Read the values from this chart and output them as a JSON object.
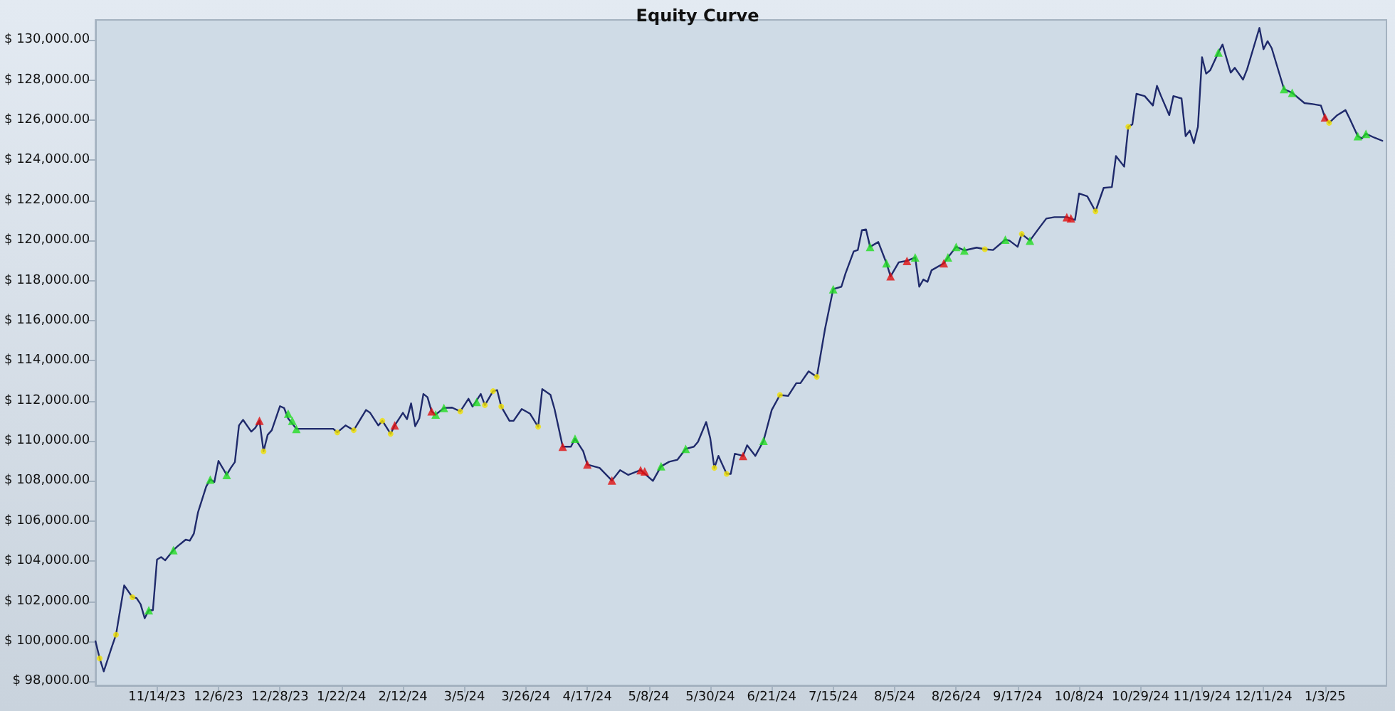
{
  "chart_data": {
    "type": "line",
    "title": "Equity Curve",
    "categories": [
      null,
      null,
      null,
      null,
      null,
      null,
      null,
      null,
      null,
      null,
      null,
      null,
      null,
      null,
      null,
      "11/14/23",
      null,
      null,
      null,
      null,
      null,
      null,
      null,
      null,
      null,
      null,
      null,
      null,
      null,
      null,
      "12/6/23",
      null,
      null,
      null,
      null,
      null,
      null,
      null,
      null,
      null,
      null,
      null,
      null,
      null,
      null,
      "12/28/23",
      null,
      null,
      null,
      null,
      null,
      null,
      null,
      null,
      null,
      null,
      null,
      null,
      null,
      null,
      "1/22/24",
      null,
      null,
      null,
      null,
      null,
      null,
      null,
      null,
      null,
      null,
      null,
      null,
      null,
      null,
      "2/12/24",
      null,
      null,
      null,
      null,
      null,
      null,
      null,
      null,
      null,
      null,
      null,
      null,
      null,
      null,
      "3/5/24",
      null,
      null,
      null,
      null,
      null,
      null,
      null,
      null,
      null,
      null,
      null,
      null,
      null,
      null,
      "3/26/24",
      null,
      null,
      null,
      null,
      null,
      null,
      null,
      null,
      null,
      null,
      null,
      null,
      null,
      null,
      "4/17/24",
      null,
      null,
      null,
      null,
      null,
      null,
      null,
      null,
      null,
      null,
      null,
      null,
      null,
      null,
      "5/8/24",
      null,
      null,
      null,
      null,
      null,
      null,
      null,
      null,
      null,
      null,
      null,
      null,
      null,
      null,
      "5/30/24",
      null,
      null,
      null,
      null,
      null,
      null,
      null,
      null,
      null,
      null,
      null,
      null,
      null,
      null,
      "6/21/24",
      null,
      null,
      null,
      null,
      null,
      null,
      null,
      null,
      null,
      null,
      null,
      null,
      null,
      null,
      "7/15/24",
      null,
      null,
      null,
      null,
      null,
      null,
      null,
      null,
      null,
      null,
      null,
      null,
      null,
      null,
      "8/5/24",
      null,
      null,
      null,
      null,
      null,
      null,
      null,
      null,
      null,
      null,
      null,
      null,
      null,
      null,
      "8/26/24",
      null,
      null,
      null,
      null,
      null,
      null,
      null,
      null,
      null,
      null,
      null,
      null,
      null,
      null,
      "9/17/24",
      null,
      null,
      null,
      null,
      null,
      null,
      null,
      null,
      null,
      null,
      null,
      null,
      null,
      null,
      "10/8/24",
      null,
      null,
      null,
      null,
      null,
      null,
      null,
      null,
      null,
      null,
      null,
      null,
      null,
      null,
      "10/29/24",
      null,
      null,
      null,
      null,
      null,
      null,
      null,
      null,
      null,
      null,
      null,
      null,
      null,
      null,
      "11/19/24",
      null,
      null,
      null,
      null,
      null,
      null,
      null,
      null,
      null,
      null,
      null,
      null,
      null,
      null,
      "12/11/24",
      null,
      null,
      null,
      null,
      null,
      null,
      null,
      null,
      null,
      null,
      null,
      null,
      null,
      null,
      "1/3/25",
      null,
      null,
      null,
      null,
      null,
      null,
      null,
      null,
      null,
      null,
      null,
      null,
      null,
      null,
      null
    ],
    "ylim": [
      97800,
      131000
    ],
    "yticks": [
      {
        "value": 98000,
        "label": "$ 98,000.00"
      },
      {
        "value": 100000,
        "label": "$ 100,000.00"
      },
      {
        "value": 102000,
        "label": "$ 102,000.00"
      },
      {
        "value": 104000,
        "label": "$ 104,000.00"
      },
      {
        "value": 106000,
        "label": "$ 106,000.00"
      },
      {
        "value": 108000,
        "label": "$ 108,000.00"
      },
      {
        "value": 110000,
        "label": "$ 110,000.00"
      },
      {
        "value": 112000,
        "label": "$ 112,000.00"
      },
      {
        "value": 114000,
        "label": "$ 114,000.00"
      },
      {
        "value": 116000,
        "label": "$ 116,000.00"
      },
      {
        "value": 118000,
        "label": "$ 118,000.00"
      },
      {
        "value": 120000,
        "label": "$ 120,000.00"
      },
      {
        "value": 122000,
        "label": "$ 122,000.00"
      },
      {
        "value": 124000,
        "label": "$ 124,000.00"
      },
      {
        "value": 126000,
        "label": "$ 126,000.00"
      },
      {
        "value": 128000,
        "label": "$ 128,000.00"
      },
      {
        "value": 130000,
        "label": "$ 130,000.00"
      }
    ],
    "grid": false,
    "line_style": "solid",
    "series": [
      {
        "color": "#1f2a6b",
        "marker": "none",
        "values": [
          100000,
          99150,
          98500,
          null,
          99740,
          100330,
          null,
          102790,
          null,
          102200,
          102160,
          101850,
          101150,
          101550,
          101550,
          104080,
          104200,
          104040,
          null,
          104550,
          104740,
          null,
          105070,
          105020,
          105380,
          106430,
          null,
          107720,
          108070,
          107950,
          109000,
          null,
          108300,
          108650,
          108940,
          110770,
          111050,
          null,
          110460,
          110650,
          111000,
          109480,
          110300,
          110530,
          null,
          111730,
          111640,
          111120,
          null,
          110600,
          null,
          null,
          null,
          null,
          null,
          null,
          null,
          null,
          110600,
          110420,
          null,
          110770,
          null,
          110530,
          null,
          null,
          111540,
          111400,
          null,
          110770,
          111000,
          null,
          110350,
          110770,
          null,
          111400,
          111080,
          111870,
          110730,
          111120,
          112340,
          112180,
          111470,
          111310,
          null,
          111640,
          null,
          111660,
          null,
          111470,
          null,
          112100,
          111710,
          null,
          112340,
          111780,
          null,
          112480,
          112530,
          111710,
          null,
          111000,
          111000,
          null,
          111590,
          null,
          111360,
          null,
          110700,
          112580,
          null,
          112300,
          111590,
          null,
          109710,
          null,
          109710,
          110110,
          null,
          109480,
          108820,
          null,
          null,
          108650,
          null,
          null,
          108020,
          null,
          108540,
          null,
          108300,
          null,
          null,
          108540,
          null,
          null,
          108000,
          null,
          108730,
          null,
          108960,
          null,
          109060,
          null,
          109600,
          null,
          109710,
          109950,
          null,
          110940,
          110130,
          108650,
          109250,
          null,
          108350,
          108350,
          109360,
          null,
          109250,
          109780,
          null,
          109250,
          null,
          110000,
          null,
          111540,
          null,
          112290,
          null,
          112240,
          null,
          112880,
          112880,
          null,
          113470,
          null,
          113190,
          null,
          115580,
          null,
          117570,
          null,
          117690,
          118350,
          null,
          119450,
          119520,
          120510,
          120550,
          119680,
          null,
          119920,
          null,
          118860,
          118210,
          null,
          118910,
          null,
          118980,
          null,
          119150,
          117690,
          118050,
          117930,
          118510,
          null,
          null,
          118860,
          119150,
          null,
          119680,
          null,
          119500,
          null,
          null,
          119640,
          null,
          119560,
          null,
          119520,
          null,
          null,
          120040,
          119990,
          null,
          119680,
          120320,
          null,
          119990,
          null,
          120550,
          null,
          121090,
          null,
          121160,
          null,
          null,
          121160,
          null,
          121020,
          122340,
          null,
          122200,
          null,
          121450,
          null,
          122620,
          null,
          122660,
          124210,
          null,
          123680,
          125670,
          125790,
          127310,
          null,
          127200,
          null,
          126730,
          127710,
          127200,
          null,
          126250,
          127200,
          null,
          127080,
          125200,
          125480,
          124850,
          125670,
          129140,
          128320,
          128490,
          null,
          129380,
          129770,
          null,
          128370,
          128610,
          null,
          128020,
          128540,
          null,
          null,
          130600,
          129540,
          129940,
          129590,
          null,
          null,
          127550,
          null,
          127360,
          null,
          null,
          126850,
          null,
          126800,
          null,
          126730,
          126140,
          125860,
          null,
          126250,
          null,
          126500,
          126090,
          null,
          125200,
          125090,
          125320,
          null,
          125130,
          null,
          124970,
          null
        ]
      },
      {
        "type": "scatter",
        "color": "#22dd22",
        "marker": "triangle",
        "values": [
          null,
          null,
          null,
          null,
          null,
          null,
          null,
          null,
          null,
          null,
          null,
          null,
          null,
          101550,
          null,
          null,
          null,
          null,
          null,
          104550,
          null,
          null,
          null,
          null,
          null,
          null,
          null,
          null,
          108070,
          null,
          null,
          null,
          108300,
          null,
          null,
          null,
          null,
          null,
          null,
          null,
          null,
          null,
          null,
          null,
          null,
          null,
          null,
          111360,
          111000,
          110600,
          null,
          null,
          null,
          null,
          null,
          null,
          null,
          null,
          null,
          null,
          null,
          null,
          null,
          null,
          null,
          null,
          null,
          null,
          null,
          null,
          null,
          null,
          null,
          null,
          null,
          null,
          null,
          null,
          null,
          null,
          null,
          null,
          null,
          111310,
          null,
          111640,
          null,
          null,
          null,
          null,
          null,
          null,
          null,
          111940,
          null,
          null,
          null,
          null,
          null,
          null,
          null,
          null,
          null,
          null,
          null,
          null,
          null,
          null,
          null,
          null,
          null,
          null,
          null,
          null,
          null,
          null,
          null,
          110110,
          null,
          null,
          null,
          null,
          null,
          null,
          null,
          null,
          null,
          null,
          null,
          null,
          null,
          null,
          null,
          null,
          null,
          null,
          null,
          null,
          108730,
          null,
          null,
          null,
          null,
          null,
          109600,
          null,
          null,
          null,
          null,
          null,
          null,
          null,
          null,
          null,
          null,
          null,
          null,
          null,
          null,
          null,
          null,
          null,
          null,
          110000,
          null,
          null,
          null,
          null,
          null,
          null,
          null,
          null,
          null,
          null,
          null,
          null,
          null,
          null,
          null,
          null,
          117570,
          null,
          null,
          null,
          null,
          null,
          null,
          null,
          null,
          119680,
          null,
          null,
          null,
          118860,
          null,
          null,
          null,
          null,
          null,
          null,
          119150,
          null,
          null,
          null,
          null,
          null,
          null,
          null,
          119150,
          null,
          119680,
          null,
          119500,
          null,
          null,
          null,
          null,
          null,
          null,
          null,
          null,
          null,
          120040,
          null,
          null,
          null,
          null,
          null,
          119990,
          null,
          null,
          null,
          null,
          null,
          null,
          null,
          null,
          null,
          null,
          null,
          null,
          null,
          null,
          null,
          null,
          null,
          null,
          null,
          null,
          null,
          null,
          null,
          null,
          null,
          null,
          null,
          null,
          null,
          null,
          null,
          null,
          null,
          null,
          null,
          null,
          null,
          null,
          null,
          null,
          null,
          null,
          null,
          null,
          null,
          129380,
          null,
          null,
          null,
          null,
          null,
          null,
          null,
          null,
          null,
          null,
          null,
          null,
          null,
          null,
          null,
          127550,
          null,
          127360,
          null,
          null,
          null,
          null,
          null,
          null,
          null,
          null,
          null,
          null,
          null,
          null,
          null,
          null,
          null,
          125200,
          null,
          125320,
          null,
          null,
          null,
          null,
          null
        ]
      },
      {
        "type": "scatter",
        "color": "#e01010",
        "marker": "triangle",
        "values": [
          null,
          null,
          null,
          null,
          null,
          null,
          null,
          null,
          null,
          null,
          null,
          null,
          null,
          null,
          null,
          null,
          null,
          null,
          null,
          null,
          null,
          null,
          null,
          null,
          null,
          null,
          null,
          null,
          null,
          null,
          null,
          null,
          null,
          null,
          null,
          null,
          null,
          null,
          null,
          null,
          111000,
          null,
          null,
          null,
          null,
          null,
          null,
          null,
          null,
          null,
          null,
          null,
          null,
          null,
          null,
          null,
          null,
          null,
          null,
          null,
          null,
          null,
          null,
          null,
          null,
          null,
          null,
          null,
          null,
          null,
          null,
          null,
          null,
          110770,
          null,
          null,
          null,
          null,
          null,
          null,
          null,
          null,
          111470,
          null,
          null,
          null,
          null,
          null,
          null,
          null,
          null,
          null,
          null,
          null,
          null,
          null,
          null,
          null,
          null,
          null,
          null,
          null,
          null,
          null,
          null,
          null,
          null,
          null,
          null,
          null,
          null,
          null,
          null,
          null,
          109710,
          null,
          null,
          null,
          null,
          null,
          108820,
          null,
          null,
          null,
          null,
          null,
          108020,
          null,
          null,
          null,
          null,
          null,
          null,
          108540,
          108480,
          null,
          null,
          null,
          null,
          null,
          null,
          null,
          null,
          null,
          null,
          null,
          null,
          null,
          null,
          null,
          null,
          null,
          null,
          null,
          null,
          null,
          null,
          null,
          109250,
          null,
          null,
          null,
          null,
          null,
          null,
          null,
          null,
          null,
          null,
          null,
          null,
          null,
          null,
          null,
          null,
          null,
          null,
          null,
          null,
          null,
          null,
          null,
          null,
          null,
          null,
          null,
          null,
          null,
          null,
          null,
          null,
          null,
          null,
          null,
          118210,
          null,
          null,
          null,
          118980,
          null,
          null,
          null,
          null,
          null,
          null,
          null,
          null,
          118860,
          null,
          null,
          null,
          null,
          null,
          null,
          null,
          null,
          null,
          null,
          null,
          null,
          null,
          null,
          null,
          null,
          null,
          null,
          null,
          null,
          null,
          null,
          null,
          null,
          null,
          null,
          null,
          null,
          null,
          121160,
          121100,
          null,
          null,
          null,
          null,
          null,
          null,
          null,
          null,
          null,
          null,
          null,
          null,
          null,
          null,
          null,
          null,
          null,
          null,
          null,
          null,
          null,
          null,
          null,
          null,
          null,
          null,
          null,
          null,
          null,
          null,
          null,
          null,
          null,
          null,
          null,
          null,
          null,
          null,
          null,
          null,
          null,
          null,
          null,
          null,
          null,
          null,
          null,
          null,
          null,
          null,
          null,
          null,
          null,
          null,
          null,
          null,
          null,
          null,
          null,
          null,
          null,
          126140,
          null,
          null,
          null,
          null,
          null,
          null,
          null,
          null,
          null,
          null,
          null,
          null,
          null,
          null,
          null
        ]
      },
      {
        "type": "scatter",
        "color": "#f0e000",
        "marker": "circle",
        "values": [
          null,
          99150,
          null,
          null,
          null,
          100330,
          null,
          null,
          null,
          102200,
          null,
          null,
          null,
          null,
          null,
          null,
          null,
          null,
          null,
          null,
          null,
          null,
          null,
          null,
          null,
          null,
          null,
          null,
          null,
          null,
          null,
          null,
          null,
          null,
          null,
          null,
          null,
          null,
          null,
          null,
          null,
          109480,
          null,
          null,
          null,
          null,
          null,
          null,
          null,
          null,
          null,
          null,
          null,
          null,
          null,
          null,
          null,
          null,
          null,
          110420,
          null,
          null,
          null,
          110530,
          null,
          null,
          null,
          null,
          null,
          null,
          111000,
          null,
          110350,
          null,
          null,
          null,
          null,
          null,
          null,
          null,
          null,
          null,
          null,
          null,
          null,
          null,
          null,
          null,
          null,
          111470,
          null,
          null,
          null,
          null,
          null,
          111780,
          null,
          112480,
          null,
          111710,
          null,
          null,
          null,
          null,
          null,
          null,
          null,
          null,
          110700,
          null,
          null,
          null,
          null,
          null,
          null,
          null,
          null,
          null,
          null,
          null,
          null,
          null,
          null,
          null,
          null,
          null,
          null,
          null,
          null,
          null,
          null,
          null,
          null,
          null,
          null,
          null,
          null,
          null,
          null,
          null,
          null,
          null,
          null,
          null,
          null,
          null,
          null,
          null,
          null,
          null,
          null,
          108650,
          null,
          null,
          108350,
          null,
          null,
          null,
          null,
          null,
          null,
          null,
          null,
          null,
          null,
          null,
          null,
          112290,
          null,
          null,
          null,
          null,
          null,
          null,
          null,
          null,
          113190,
          null,
          null,
          null,
          null,
          null,
          null,
          null,
          null,
          null,
          null,
          null,
          null,
          null,
          null,
          null,
          null,
          null,
          null,
          null,
          null,
          null,
          null,
          null,
          null,
          null,
          null,
          null,
          null,
          null,
          null,
          null,
          null,
          null,
          null,
          null,
          null,
          null,
          null,
          null,
          null,
          119560,
          null,
          null,
          null,
          null,
          null,
          null,
          null,
          null,
          120320,
          null,
          null,
          null,
          null,
          null,
          null,
          null,
          null,
          null,
          null,
          null,
          null,
          null,
          null,
          null,
          null,
          null,
          121450,
          null,
          null,
          null,
          null,
          null,
          null,
          null,
          125670,
          null,
          null,
          null,
          null,
          null,
          null,
          null,
          null,
          null,
          null,
          null,
          null,
          null,
          null,
          null,
          null,
          null,
          null,
          null,
          null,
          null,
          null,
          null,
          null,
          null,
          null,
          null,
          null,
          null,
          null,
          null,
          null,
          null,
          null,
          null,
          null,
          null,
          null,
          null,
          null,
          null,
          null,
          null,
          null,
          null,
          null,
          null,
          null,
          125860,
          null,
          null,
          null,
          null,
          null,
          null,
          null,
          null,
          null,
          null,
          null,
          null,
          null,
          null
        ]
      }
    ]
  }
}
